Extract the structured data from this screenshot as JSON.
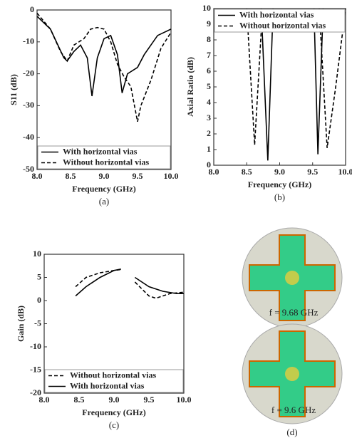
{
  "chart_data": [
    {
      "type": "line",
      "caption": "(a)",
      "xlabel": "Frequency (GHz)",
      "ylabel": "S11 (dB)",
      "xlim": [
        8,
        10
      ],
      "xticks": [
        {
          "value": 8,
          "label": "8.0"
        },
        {
          "value": 8.5,
          "label": "8.5"
        },
        {
          "value": 9,
          "label": "9.0"
        },
        {
          "value": 9.5,
          "label": "9.5"
        },
        {
          "value": 10,
          "label": "10.0"
        }
      ],
      "ylim": [
        -50,
        0
      ],
      "yticks": [
        0,
        -10,
        -20,
        -30,
        -40,
        -50
      ],
      "legend": "lower left",
      "series": [
        {
          "name": "With horizontal vias",
          "color": "#000000",
          "style": "solid",
          "x": [
            8.0,
            8.2,
            8.4,
            8.45,
            8.55,
            8.65,
            8.75,
            8.82,
            8.9,
            9.0,
            9.1,
            9.2,
            9.27,
            9.35,
            9.5,
            9.6,
            9.8,
            10.0
          ],
          "values": [
            -2,
            -6,
            -15,
            -16,
            -13,
            -11,
            -15,
            -27,
            -15,
            -9,
            -8,
            -14,
            -26,
            -20,
            -18,
            -14,
            -8,
            -6
          ]
        },
        {
          "name": "Without horizontal vias",
          "color": "#000000",
          "style": "dashed",
          "x": [
            8.0,
            8.2,
            8.35,
            8.45,
            8.55,
            8.7,
            8.8,
            8.9,
            9.0,
            9.1,
            9.2,
            9.3,
            9.4,
            9.5,
            9.55,
            9.7,
            9.85,
            10.0
          ],
          "values": [
            -1,
            -6,
            -13,
            -16,
            -11,
            -9,
            -6,
            -5.5,
            -6,
            -10,
            -17,
            -21,
            -24,
            -35,
            -30,
            -22,
            -12,
            -7
          ]
        }
      ]
    },
    {
      "type": "line",
      "caption": "(b)",
      "xlabel": "Frequency (GHz)",
      "ylabel": "Axial Ratio (dB)",
      "xlim": [
        8,
        10
      ],
      "xticks": [
        {
          "value": 8,
          "label": "8.0"
        },
        {
          "value": 8.5,
          "label": "8.5"
        },
        {
          "value": 9,
          "label": "9.0"
        },
        {
          "value": 9.5,
          "label": "9.5"
        },
        {
          "value": 10,
          "label": "10.0"
        }
      ],
      "ylim": [
        0,
        10
      ],
      "yticks": [
        0,
        1,
        2,
        3,
        4,
        5,
        6,
        7,
        8,
        9,
        10
      ],
      "legend": "upper left",
      "series": [
        {
          "name": "With horizontal vias",
          "color": "#000000",
          "style": "solid",
          "x": [
            8.72,
            8.82,
            8.9,
            9.2,
            9.52,
            9.58,
            9.66
          ],
          "values": [
            10,
            0.3,
            10,
            null,
            10,
            0.7,
            10
          ]
        },
        {
          "name": "Without horizontal vias",
          "color": "#000000",
          "style": "dashed",
          "x": [
            8.5,
            8.62,
            8.74,
            9.2,
            9.6,
            9.72,
            9.85,
            10.0
          ],
          "values": [
            10,
            1.3,
            10,
            null,
            10,
            1.1,
            5,
            10
          ]
        }
      ]
    },
    {
      "type": "line",
      "caption": "(c)",
      "xlabel": "Frequency (GHz)",
      "ylabel": "Gain (dB)",
      "xlim": [
        8,
        10
      ],
      "xticks": [
        {
          "value": 8,
          "label": "8.0"
        },
        {
          "value": 8.5,
          "label": "8.5"
        },
        {
          "value": 9,
          "label": "9.0"
        },
        {
          "value": 9.5,
          "label": "9.5"
        },
        {
          "value": 10,
          "label": "10.0"
        }
      ],
      "ylim": [
        -20,
        10
      ],
      "yticks": [
        10,
        5,
        0,
        -5,
        -10,
        -15,
        -20
      ],
      "legend": "lower left",
      "series": [
        {
          "name": "Without horizontal vias",
          "color": "#000000",
          "style": "dashed",
          "x": [
            8.45,
            8.6,
            8.8,
            9.0,
            9.1,
            9.2,
            9.3,
            9.5,
            9.6,
            9.8,
            10.0
          ],
          "values": [
            3,
            5,
            6,
            6.5,
            6.7,
            null,
            4,
            1,
            0.5,
            1.5,
            1.8
          ]
        },
        {
          "name": "With horizontal vias",
          "color": "#000000",
          "style": "solid",
          "x": [
            8.45,
            8.6,
            8.8,
            9.0,
            9.1,
            9.2,
            9.3,
            9.5,
            9.7,
            9.9,
            10.0
          ],
          "values": [
            1,
            3,
            5,
            6.5,
            6.8,
            null,
            5,
            3,
            2,
            1.5,
            1.5
          ]
        }
      ]
    }
  ],
  "panel_d": {
    "labels": [
      "f = 9.68 GHz",
      "f = 9.6 GHz"
    ],
    "caption": "(d)"
  }
}
